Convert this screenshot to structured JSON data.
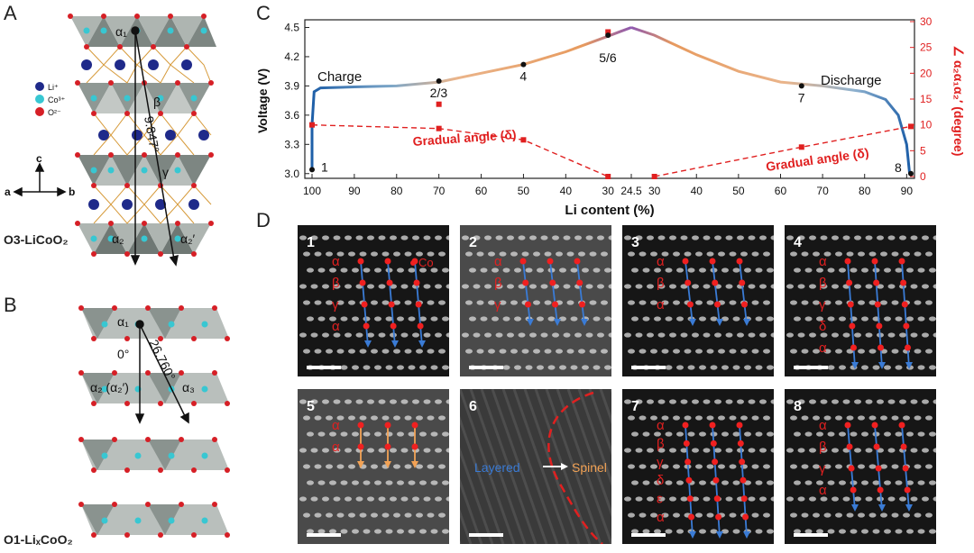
{
  "panel_a": {
    "letter": "A",
    "angle": "9.847°",
    "legend": [
      "Li⁺",
      "Co³⁺",
      "O²⁻"
    ],
    "legend_colors": [
      "#1f2a8a",
      "#38c7d2",
      "#d61f26"
    ],
    "sites": {
      "a1": "α₁",
      "b": "β",
      "g": "γ",
      "a2": "α₂",
      "a2p": "α₂′"
    },
    "axes": {
      "c": "c",
      "a": "a",
      "b": "b"
    },
    "structure": "O3-LiCoO₂"
  },
  "panel_b": {
    "letter": "B",
    "angle_left": "0°",
    "angle_right": "26.760°",
    "sites": {
      "a1": "α₁",
      "a2": "α₂ (α₂′)",
      "a3": "α₃"
    },
    "structure": "O1-LiₓCoO₂"
  },
  "panel_c": {
    "letter": "C",
    "charge_label": "Charge",
    "discharge_label": "Discharge",
    "gradual_label": "Gradual angle (δ)",
    "ylabel": "Voltage (V)",
    "ylabel_right": "∠ α₂α₁α₂′ (degree)",
    "xlabel": "Li content (%)",
    "points": [
      "1",
      "2/3",
      "4",
      "5/6",
      "7",
      "8"
    ]
  },
  "chart_data": {
    "type": "line",
    "xlabel": "Li content (%)",
    "ylabel": "Voltage (V)",
    "ylabel_right": "∠ α₂α₁α₂′ (degree)",
    "x_ticks": [
      "100",
      "90",
      "80",
      "70",
      "60",
      "50",
      "40",
      "30",
      "24.5",
      "30",
      "40",
      "50",
      "60",
      "70",
      "80",
      "90"
    ],
    "y_ticks": [
      "3.0",
      "3.3",
      "3.6",
      "3.9",
      "4.2",
      "4.5"
    ],
    "y2_ticks": [
      "0",
      "5",
      "10",
      "15",
      "20",
      "25",
      "30"
    ],
    "ylim": [
      2.97,
      4.56
    ],
    "y2lim": [
      0,
      30
    ],
    "voltage_charge": [
      {
        "x": 100,
        "y": 3.04
      },
      {
        "x": 100,
        "y": 3.5
      },
      {
        "x": 99.5,
        "y": 3.84
      },
      {
        "x": 98,
        "y": 3.88
      },
      {
        "x": 90,
        "y": 3.89
      },
      {
        "x": 80,
        "y": 3.9
      },
      {
        "x": 70,
        "y": 3.94
      },
      {
        "x": 60,
        "y": 4.03
      },
      {
        "x": 50,
        "y": 4.12
      },
      {
        "x": 40,
        "y": 4.25
      },
      {
        "x": 30,
        "y": 4.41
      },
      {
        "x": 27,
        "y": 4.46
      },
      {
        "x": 24.5,
        "y": 4.5
      }
    ],
    "voltage_discharge": [
      {
        "x": 24.5,
        "y": 4.5
      },
      {
        "x": 30,
        "y": 4.42
      },
      {
        "x": 40,
        "y": 4.22
      },
      {
        "x": 50,
        "y": 4.05
      },
      {
        "x": 60,
        "y": 3.94
      },
      {
        "x": 70,
        "y": 3.9
      },
      {
        "x": 80,
        "y": 3.84
      },
      {
        "x": 85,
        "y": 3.76
      },
      {
        "x": 88,
        "y": 3.6
      },
      {
        "x": 90,
        "y": 3.3
      },
      {
        "x": 90.7,
        "y": 3.0
      }
    ],
    "angle_charge": [
      {
        "x": 100,
        "y": 10
      },
      {
        "x": 70,
        "y": 9.3
      },
      {
        "x": 50,
        "y": 7.1
      },
      {
        "x": 30,
        "y": 0
      }
    ],
    "angle_discharge": [
      {
        "x": 30,
        "y": 0
      },
      {
        "x": 65,
        "y": 5.7
      },
      {
        "x": 91,
        "y": 9.7
      }
    ],
    "angle_extra": [
      {
        "x": 70,
        "y": 14
      },
      {
        "x": 30,
        "y": 28
      }
    ],
    "markers": [
      {
        "label": "1",
        "x": 100,
        "y": 3.04,
        "branch": "charge"
      },
      {
        "label": "2/3",
        "x": 70,
        "y": 3.95,
        "branch": "charge"
      },
      {
        "label": "4",
        "x": 50,
        "y": 4.12,
        "branch": "charge"
      },
      {
        "label": "5/6",
        "x": 30,
        "y": 4.42,
        "branch": "charge"
      },
      {
        "label": "7",
        "x": 65,
        "y": 3.9,
        "branch": "discharge"
      },
      {
        "label": "8",
        "x": 91,
        "y": 3.0,
        "branch": "discharge"
      }
    ]
  },
  "panel_d": {
    "letter": "D",
    "images": [
      {
        "n": "1",
        "labels": [
          "α",
          "β",
          "γ",
          "α"
        ],
        "side": "Co",
        "arrow": "blue"
      },
      {
        "n": "2",
        "labels": [
          "α",
          "β",
          "γ"
        ],
        "arrow": "blue"
      },
      {
        "n": "3",
        "labels": [
          "α",
          "β",
          "α"
        ],
        "arrow": "blue"
      },
      {
        "n": "4",
        "labels": [
          "α",
          "β",
          "γ",
          "δ",
          "α"
        ],
        "arrow": "blue"
      },
      {
        "n": "5",
        "labels": [
          "α",
          "α"
        ],
        "arrow": "orange"
      },
      {
        "n": "6",
        "layered": "Layered",
        "spinel": "Spinel"
      },
      {
        "n": "7",
        "labels": [
          "α",
          "β",
          "γ",
          "δ",
          "ε",
          "α"
        ],
        "arrow": "blue"
      },
      {
        "n": "8",
        "labels": [
          "α",
          "β",
          "γ",
          "α"
        ],
        "arrow": "blue"
      }
    ]
  }
}
